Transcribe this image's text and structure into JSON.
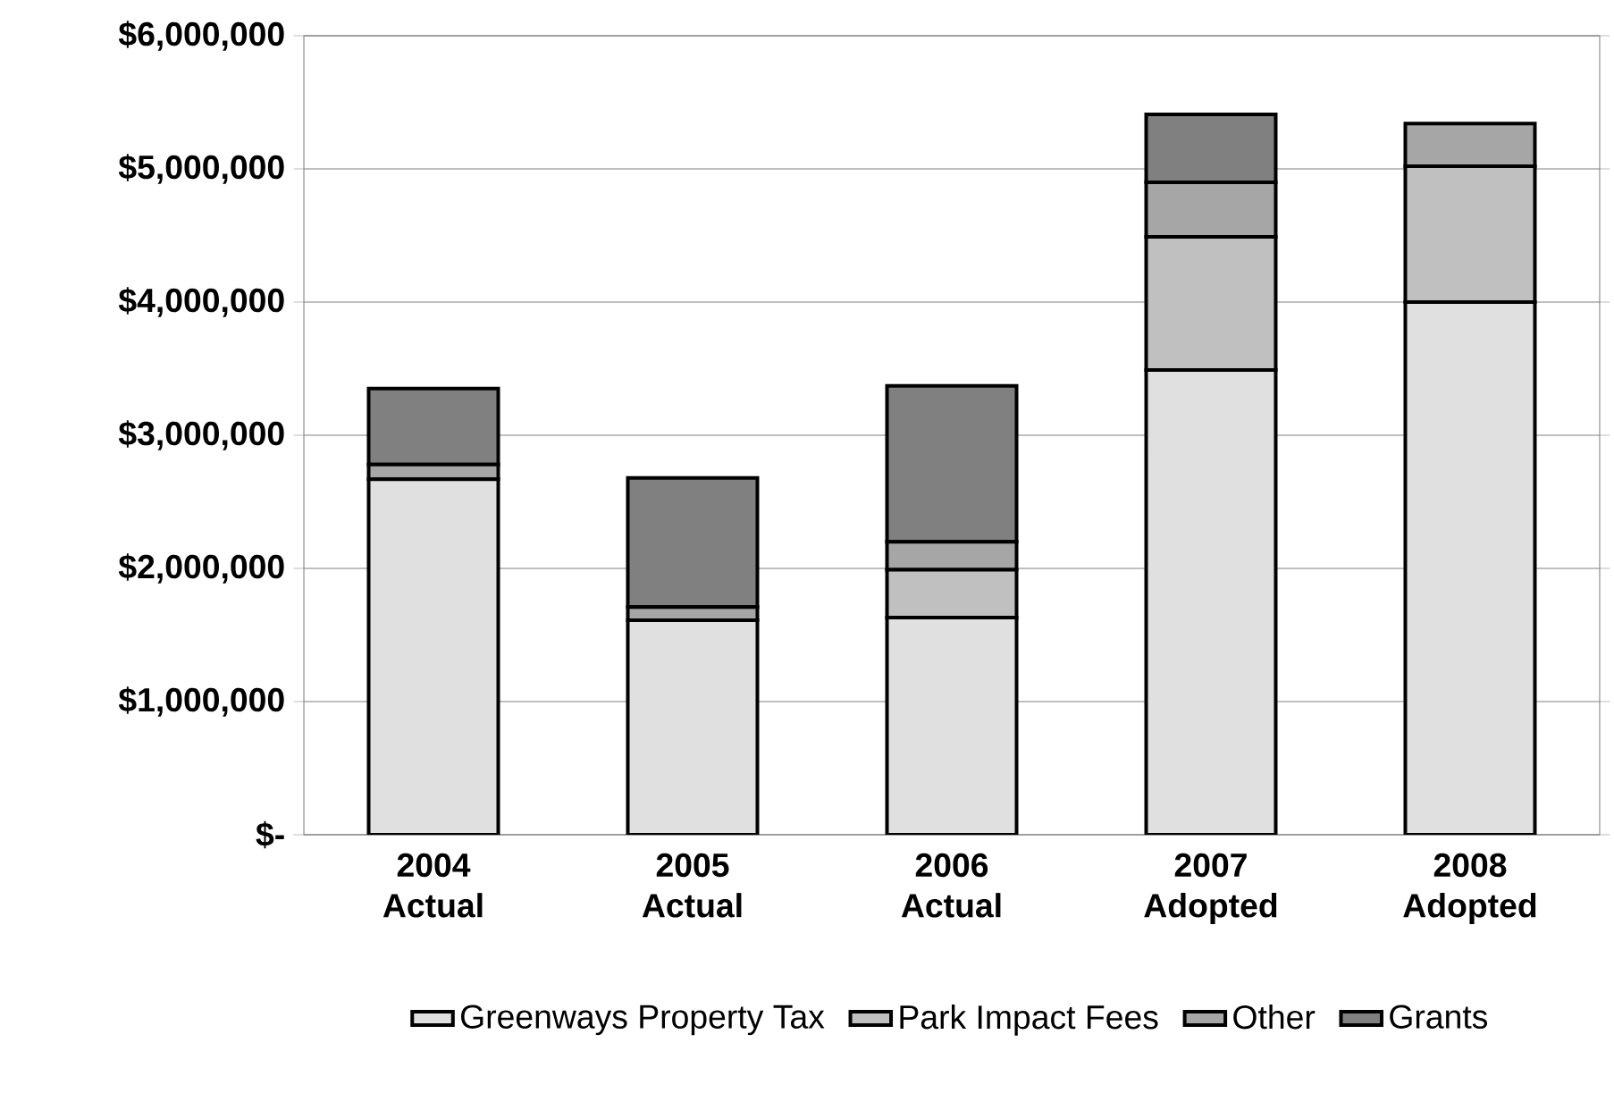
{
  "chart_data": {
    "type": "bar",
    "stacked": true,
    "categories": [
      "2004 Actual",
      "2005 Actual",
      "2006 Actual",
      "2007 Adopted",
      "2008 Adopted"
    ],
    "series": [
      {
        "name": "Greenways Property Tax",
        "color": "#e0e0e0",
        "values": [
          2670000,
          1610000,
          1630000,
          3490000,
          4000000
        ]
      },
      {
        "name": "Park Impact Fees",
        "color": "#c0c0c0",
        "values": [
          null,
          null,
          360000,
          1000000,
          1020000
        ]
      },
      {
        "name": "Other",
        "color": "#a6a6a6",
        "values": [
          110000,
          100000,
          210000,
          410000,
          320000
        ]
      },
      {
        "name": "Grants",
        "color": "#808080",
        "values": [
          570000,
          970000,
          1170000,
          510000,
          null
        ]
      }
    ],
    "ylim": [
      0,
      6000000
    ],
    "yticks": [
      {
        "value": 0,
        "label": "$-"
      },
      {
        "value": 1000000,
        "label": "$1,000,000"
      },
      {
        "value": 2000000,
        "label": "$2,000,000"
      },
      {
        "value": 3000000,
        "label": "$3,000,000"
      },
      {
        "value": 4000000,
        "label": "$4,000,000"
      },
      {
        "value": 5000000,
        "label": "$5,000,000"
      },
      {
        "value": 6000000,
        "label": "$6,000,000"
      }
    ],
    "grid": "y",
    "legend": "bottom"
  }
}
